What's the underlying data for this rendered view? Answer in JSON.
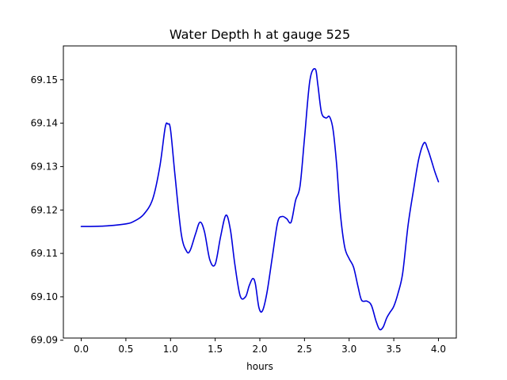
{
  "chart_data": {
    "type": "line",
    "title": "Water Depth h at gauge 525",
    "xlabel": "hours",
    "ylabel": "",
    "xlim": [
      -0.2,
      4.2
    ],
    "ylim": [
      69.0905,
      69.1578
    ],
    "xticks": [
      0.0,
      0.5,
      1.0,
      1.5,
      2.0,
      2.5,
      3.0,
      3.5,
      4.0
    ],
    "xtick_labels": [
      "0.0",
      "0.5",
      "1.0",
      "1.5",
      "2.0",
      "2.5",
      "3.0",
      "3.5",
      "4.0"
    ],
    "yticks": [
      69.09,
      69.1,
      69.11,
      69.12,
      69.13,
      69.14,
      69.15
    ],
    "ytick_labels": [
      "69.09",
      "69.10",
      "69.11",
      "69.12",
      "69.13",
      "69.14",
      "69.15"
    ],
    "grid": false,
    "series": [
      {
        "color": "#0000dd",
        "x": [
          0.0,
          0.25,
          0.5,
          0.6,
          0.7,
          0.8,
          0.88,
          0.94,
          0.97,
          1.0,
          1.05,
          1.12,
          1.18,
          1.22,
          1.28,
          1.33,
          1.38,
          1.44,
          1.5,
          1.56,
          1.62,
          1.67,
          1.72,
          1.78,
          1.84,
          1.88,
          1.92,
          1.95,
          1.99,
          2.03,
          2.08,
          2.14,
          2.2,
          2.25,
          2.3,
          2.35,
          2.4,
          2.45,
          2.5,
          2.56,
          2.62,
          2.65,
          2.69,
          2.74,
          2.78,
          2.82,
          2.86,
          2.9,
          2.95,
          3.0,
          3.05,
          3.1,
          3.14,
          3.2,
          3.25,
          3.3,
          3.34,
          3.38,
          3.42,
          3.46,
          3.5,
          3.55,
          3.6,
          3.66,
          3.72,
          3.78,
          3.84,
          3.88,
          3.92,
          3.96,
          4.0
        ],
        "y": [
          69.1162,
          69.1163,
          69.1168,
          69.1175,
          69.119,
          69.1225,
          69.13,
          69.139,
          69.1398,
          69.1385,
          69.128,
          69.1145,
          69.1105,
          69.1107,
          69.1145,
          69.1172,
          69.115,
          69.1085,
          69.1075,
          69.1138,
          69.1188,
          69.1155,
          69.1075,
          69.1002,
          69.1,
          69.1025,
          69.1042,
          69.103,
          69.0975,
          69.0968,
          69.101,
          69.1092,
          69.1172,
          69.1185,
          69.118,
          69.1172,
          69.1222,
          69.1255,
          69.1365,
          69.1498,
          69.1525,
          69.1488,
          69.1425,
          69.1412,
          69.1415,
          69.1385,
          69.1305,
          69.1195,
          69.1115,
          69.1088,
          69.1068,
          69.1023,
          69.0992,
          69.099,
          69.098,
          69.0945,
          69.0925,
          69.093,
          69.0951,
          69.0965,
          69.0978,
          69.101,
          69.1055,
          69.1165,
          69.1245,
          69.1318,
          69.1355,
          69.134,
          69.1315,
          69.1288,
          69.1265
        ]
      }
    ]
  }
}
